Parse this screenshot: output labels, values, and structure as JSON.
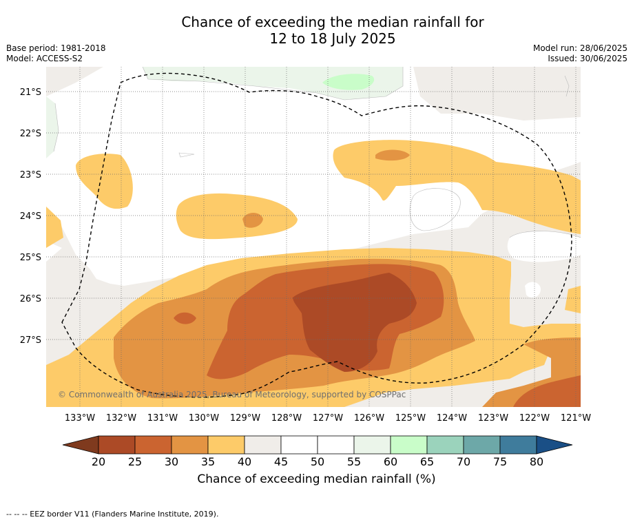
{
  "title": {
    "line1": "Chance of exceeding the median rainfall for",
    "line2": "12 to 18 July 2025"
  },
  "meta": {
    "base_period": "Base period: 1981-2018",
    "model": "Model: ACCESS-S2",
    "model_run": "Model run: 28/06/2025",
    "issued": "Issued: 30/06/2025"
  },
  "map": {
    "latitude_labels": [
      "21°S",
      "22°S",
      "23°S",
      "24°S",
      "25°S",
      "26°S",
      "27°S"
    ],
    "longitude_labels": [
      "133°W",
      "132°W",
      "131°W",
      "130°W",
      "129°W",
      "128°W",
      "127°W",
      "126°W",
      "125°W",
      "124°W",
      "123°W",
      "122°W",
      "121°W"
    ],
    "copyright": "© Commonwealth of Australia 2025, Bureau of Meteorology, supported by COSPPac"
  },
  "colorbar": {
    "title": "Chance of exceeding median rainfall (%)",
    "ticks": [
      "20",
      "25",
      "30",
      "35",
      "40",
      "45",
      "50",
      "55",
      "60",
      "65",
      "70",
      "75",
      "80"
    ],
    "colors": [
      "#7f3a1e",
      "#ac4a26",
      "#cb6430",
      "#e39443",
      "#fdcb69",
      "#f0ede9",
      "#ffffff",
      "#ffffff",
      "#ebf5ea",
      "#c9fdc9",
      "#9bd3bc",
      "#6da8a8",
      "#3f7c9c",
      "#1a4f86"
    ]
  },
  "footnote": "--  --  -- EEZ border V11 (Flanders Marine Institute, 2019)."
}
